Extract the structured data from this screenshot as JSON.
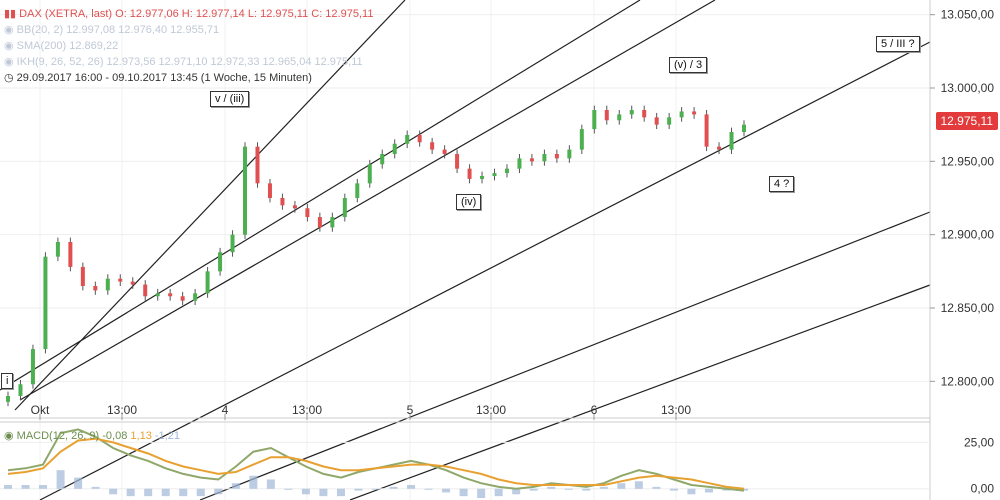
{
  "legend": {
    "title": "DAX (XETRA, last)",
    "ohlc": "O: 12.977,06  H: 12.977,14  L: 12.975,11  C: 12.975,11",
    "bb": "BB(20, 2)  12.997,08  12.976,40  12.955,71",
    "sma": "SMA(200)  12.869,22",
    "ikh": "IKH(9, 26, 52, 26)  12.973,56  12.971,10  12.972,33  12.965,04  12.975,11",
    "range": "29.09.2017 16:00 - 09.10.2017 13:45",
    "interval": "(1 Woche, 15 Minuten)"
  },
  "macd_legend": {
    "label": "MACD(12, 26, 9)",
    "v1": "-0,08",
    "v2": "1,13",
    "v3": "-1,21"
  },
  "annotations": {
    "wave_i": "i",
    "wave_v_iii": "v / (iii)",
    "wave_iv": "(iv)",
    "wave_v_3": "(v) / 3",
    "wave_4": "4 ?",
    "wave_5_III": "5 / III ?"
  },
  "last_price_tag": "12.975,11",
  "colors": {
    "up": "#4caf50",
    "down": "#e05050",
    "macd": "#8fa86a",
    "signal": "#e8a030",
    "histogram": "#9fb6d6",
    "line": "#222222"
  },
  "chart_data": [
    {
      "type": "line",
      "subtype": "candlestick",
      "y_axis": {
        "ylim": [
          12775,
          13060
        ],
        "ticks": [
          "12.800,00",
          "12.850,00",
          "12.900,00",
          "12.950,00",
          "13.000,00",
          "13.050,00"
        ]
      },
      "x_tick_labels": [
        "Okt",
        "13:00",
        "4",
        "13:00",
        "5",
        "13:00",
        "6",
        "13:00"
      ],
      "series_close": [
        12790,
        12798,
        12822,
        12885,
        12895,
        12878,
        12865,
        12862,
        12870,
        12868,
        12866,
        12858,
        12860,
        12858,
        12855,
        12860,
        12875,
        12888,
        12900,
        12960,
        12935,
        12925,
        12920,
        12918,
        12912,
        12905,
        12912,
        12925,
        12935,
        12948,
        12955,
        12962,
        12968,
        12963,
        12958,
        12955,
        12945,
        12938,
        12940,
        12942,
        12945,
        12952,
        12950,
        12955,
        12952,
        12958,
        12972,
        12985,
        12978,
        12982,
        12985,
        12980,
        12975,
        12980,
        12984,
        12982,
        12960,
        12958,
        12970,
        12975
      ]
    },
    {
      "type": "line",
      "title": "MACD(12, 26, 9)",
      "y_axis": {
        "ylim": [
          -5,
          36
        ],
        "ticks": [
          "25,00",
          "0,00"
        ]
      },
      "series": [
        {
          "name": "MACD",
          "values": [
            10,
            11,
            13,
            30,
            32,
            28,
            22,
            18,
            15,
            11,
            8,
            6,
            5,
            12,
            20,
            22,
            17,
            12,
            8,
            6,
            9,
            11,
            13,
            15,
            13,
            10,
            6,
            3,
            1,
            0,
            1,
            3,
            2,
            1,
            3,
            7,
            10,
            8,
            5,
            2,
            1,
            0,
            -1
          ]
        },
        {
          "name": "Signal",
          "values": [
            8,
            9,
            11,
            20,
            26,
            27,
            25,
            22,
            19,
            15,
            12,
            10,
            8,
            9,
            13,
            17,
            17,
            15,
            12,
            10,
            10,
            11,
            12,
            13,
            13,
            12,
            10,
            8,
            5,
            3,
            2,
            2,
            2,
            2,
            2,
            4,
            6,
            7,
            6,
            5,
            3,
            1,
            0
          ]
        },
        {
          "name": "Histogram",
          "values": [
            2,
            2,
            2,
            10,
            6,
            1,
            -3,
            -4,
            -4,
            -4,
            -4,
            -4,
            -3,
            3,
            7,
            5,
            0,
            -3,
            -4,
            -4,
            -1,
            0,
            1,
            2,
            0,
            -2,
            -4,
            -5,
            -4,
            -3,
            -1,
            1,
            0,
            -1,
            1,
            3,
            4,
            1,
            -1,
            -3,
            -2,
            -1,
            -1
          ]
        }
      ]
    }
  ]
}
